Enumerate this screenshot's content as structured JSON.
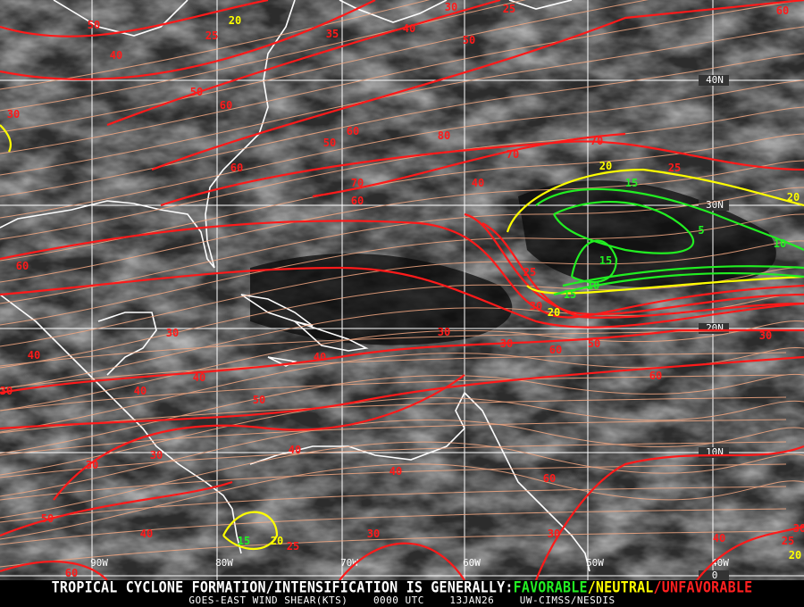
{
  "caption": {
    "headline_prefix": "TROPICAL CYCLONE FORMATION/INTENSIFICATION IS GENERALLY:",
    "favorable": "FAVORABLE",
    "sep1": "/",
    "neutral": "NEUTRAL",
    "sep2": "/",
    "unfavorable": "UNFAVORABLE",
    "product": "GOES-EAST WIND SHEAR(KTS)",
    "time": "0000 UTC",
    "date": "13JAN26",
    "source": "UW-CIMSS/NESDIS"
  },
  "colors": {
    "favorable": "#22ee22",
    "neutral": "#ffff00",
    "unfavorable": "#ff1a1a",
    "streamline": "#f4a882",
    "coast": "#ffffff",
    "grid": "#ffffff"
  },
  "grid": {
    "longitudes": [
      "90W",
      "80W",
      "70W",
      "60W",
      "50W",
      "40W"
    ],
    "latitudes": [
      "40N",
      "30N",
      "20N",
      "10N",
      "0"
    ]
  },
  "contour_labels": {
    "red": [
      "30",
      "40",
      "50",
      "25",
      "35",
      "40",
      "50",
      "30",
      "25",
      "60",
      "50",
      "60",
      "60",
      "50",
      "60",
      "80",
      "70",
      "70",
      "60",
      "40",
      "70",
      "25",
      "25",
      "30",
      "60",
      "30",
      "40",
      "40",
      "40",
      "40",
      "30",
      "50",
      "30",
      "30",
      "60",
      "50",
      "60",
      "30",
      "30",
      "30",
      "40",
      "40",
      "60",
      "30",
      "30",
      "50",
      "40",
      "60",
      "25",
      "40",
      "25",
      "30"
    ],
    "yellow": [
      "20",
      "20",
      "20",
      "20",
      "20",
      "20"
    ],
    "green": [
      "15",
      "5",
      "10",
      "15",
      "15",
      "10",
      "15"
    ]
  }
}
